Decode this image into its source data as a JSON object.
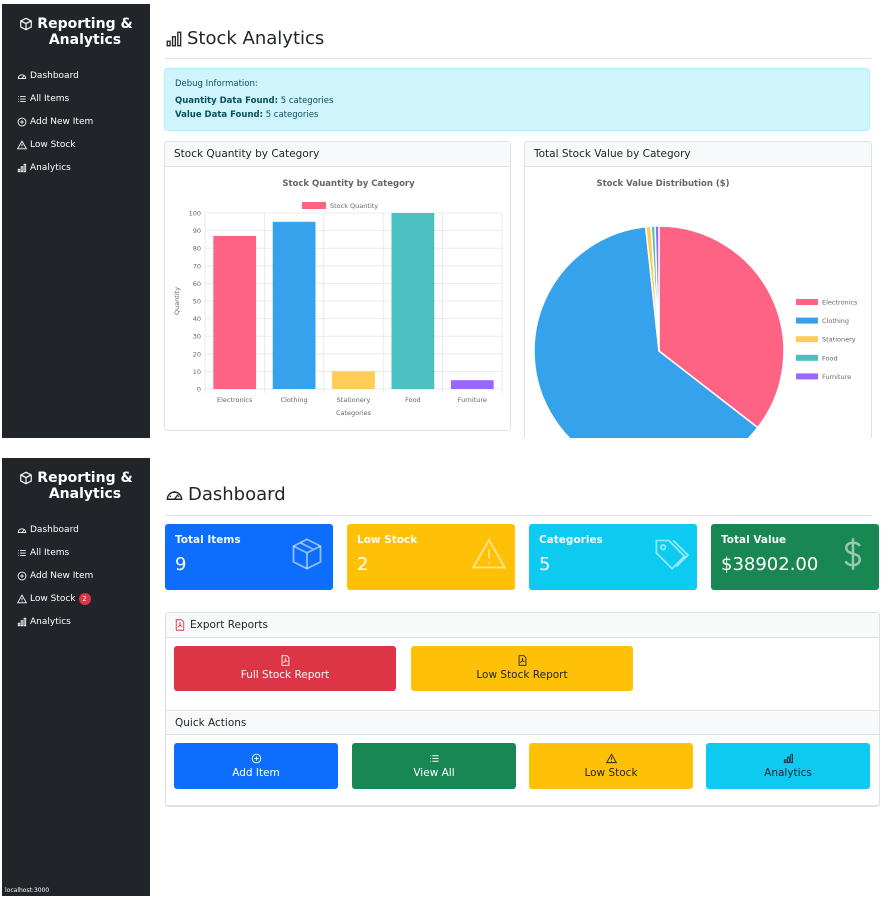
{
  "app": {
    "brand_line1": "Reporting &",
    "brand_line2": "Analytics",
    "footer_url": "localhost:3000"
  },
  "nav": {
    "items": [
      {
        "label": "Dashboard",
        "icon": "speedometer-icon"
      },
      {
        "label": "All Items",
        "icon": "list-icon"
      },
      {
        "label": "Add New Item",
        "icon": "plus-circle-icon"
      },
      {
        "label": "Low Stock",
        "icon": "warning-triangle-icon"
      },
      {
        "label": "Analytics",
        "icon": "bar-chart-icon"
      }
    ],
    "low_stock_badge": "2"
  },
  "analytics": {
    "title": "Stock Analytics",
    "debug": {
      "heading": "Debug Information:",
      "quantity_label": "Quantity Data Found:",
      "quantity_value": "5 categories",
      "value_label": "Value Data Found:",
      "value_value": "5 categories"
    },
    "quantity_card_title": "Stock Quantity by Category",
    "value_card_title": "Total Stock Value by Category"
  },
  "chart_data": [
    {
      "type": "bar",
      "title": "Stock Quantity by Category",
      "xlabel": "Categories",
      "ylabel": "Quantity",
      "categories": [
        "Electronics",
        "Clothing",
        "Stationery",
        "Food",
        "Furniture"
      ],
      "series": [
        {
          "name": "Stock Quantity",
          "values": [
            87,
            95,
            10,
            100,
            5
          ]
        }
      ],
      "colors": [
        "#ff6384",
        "#36a2eb",
        "#ffcd56",
        "#4bc0c0",
        "#9966ff"
      ],
      "ylim": [
        0,
        100
      ],
      "yticks": [
        0,
        10,
        20,
        30,
        40,
        50,
        60,
        70,
        80,
        90,
        100
      ],
      "legend": "top",
      "grid": true
    },
    {
      "type": "pie",
      "title": "Stock Value Distribution ($)",
      "categories": [
        "Electronics",
        "Clothing",
        "Stationery",
        "Food",
        "Furniture"
      ],
      "values": [
        35.5,
        62.8,
        0.7,
        0.5,
        0.5
      ],
      "colors": [
        "#ff6384",
        "#36a2eb",
        "#ffcd56",
        "#4bc0c0",
        "#9966ff"
      ],
      "legend": "right"
    }
  ],
  "dashboard": {
    "title": "Dashboard",
    "stats": [
      {
        "label": "Total Items",
        "value": "9",
        "color": "#0d6efd",
        "icon": "box-icon"
      },
      {
        "label": "Low Stock",
        "value": "2",
        "color": "#ffc107",
        "icon": "warning-triangle-icon"
      },
      {
        "label": "Categories",
        "value": "5",
        "color": "#0dcaf0",
        "icon": "tags-icon"
      },
      {
        "label": "Total Value",
        "value": "$38902.00",
        "color": "#198754",
        "icon": "dollar-icon"
      }
    ],
    "export_title": "Export Reports",
    "export_buttons": [
      {
        "label": "Full Stock Report",
        "color": "#dc3545",
        "icon": "pdf-file-icon"
      },
      {
        "label": "Low Stock Report",
        "color": "#ffc107",
        "icon": "pdf-file-icon"
      }
    ],
    "quick_title": "Quick Actions",
    "quick_buttons": [
      {
        "label": "Add Item",
        "color": "#0d6efd",
        "icon": "plus-circle-icon"
      },
      {
        "label": "View All",
        "color": "#198754",
        "icon": "list-icon"
      },
      {
        "label": "Low Stock",
        "color": "#ffc107",
        "icon": "warning-triangle-icon"
      },
      {
        "label": "Analytics",
        "color": "#0dcaf0",
        "icon": "bar-chart-icon"
      }
    ]
  }
}
